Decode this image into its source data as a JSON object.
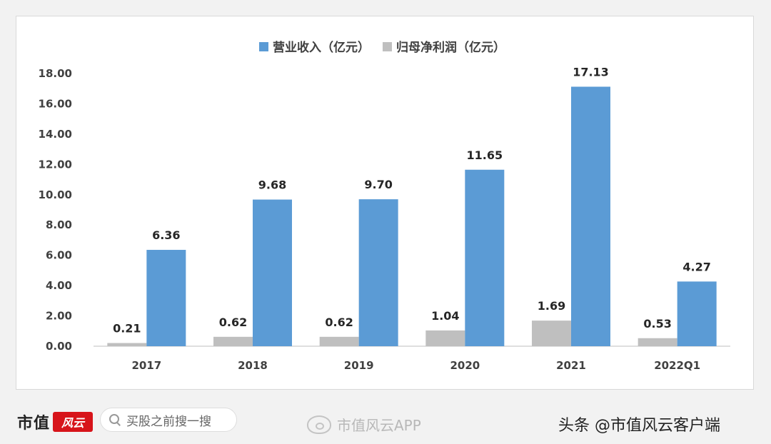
{
  "chart_data": {
    "type": "bar",
    "categories": [
      "2017",
      "2018",
      "2019",
      "2020",
      "2021",
      "2022Q1"
    ],
    "series": [
      {
        "name": "归母净利润（亿元）",
        "color": "#bfbfbf",
        "values": [
          0.21,
          0.62,
          0.62,
          1.04,
          1.69,
          0.53
        ]
      },
      {
        "name": "营业收入（亿元）",
        "color": "#5b9bd5",
        "values": [
          6.36,
          9.68,
          9.7,
          11.65,
          17.13,
          4.27
        ]
      }
    ],
    "legend_order": [
      1,
      0
    ],
    "value_labels": {
      "0": [
        "0.21",
        "0.62",
        "0.62",
        "1.04",
        "1.69",
        "0.53"
      ],
      "1": [
        "6.36",
        "9.68",
        "9.70",
        "11.65",
        "17.13",
        "4.27"
      ]
    },
    "yticks": [
      "0.00",
      "2.00",
      "4.00",
      "6.00",
      "8.00",
      "10.00",
      "12.00",
      "14.00",
      "16.00",
      "18.00"
    ],
    "ylim": [
      0,
      18
    ],
    "legend_position": "top-center",
    "grid": false
  },
  "footer": {
    "logo_text": "市值",
    "logo_mark": "风云",
    "search_text": "买股之前搜一搜",
    "weibo_text": "市值风云APP",
    "toutiao_text": "头条 @市值风云客户端"
  }
}
